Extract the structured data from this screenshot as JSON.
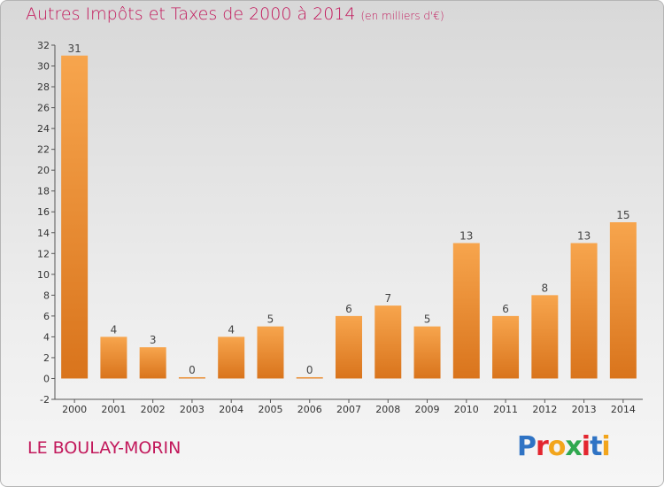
{
  "title": "Autres Impôts et Taxes de 2000 à 2014",
  "unit": "(en milliers d'€)",
  "location": "LE BOULAY-MORIN",
  "brand": {
    "letters": [
      "P",
      "r",
      "o",
      "x",
      "i",
      "t",
      "i"
    ],
    "colors": [
      "#2f73c4",
      "#e3262f",
      "#f2a51c",
      "#2fa84f",
      "#e3262f",
      "#2f73c4",
      "#f2a51c"
    ]
  },
  "colors": {
    "title": "#c2185b",
    "bar_light": "#f7a54d",
    "bar_dark": "#d9741c"
  },
  "chart_data": {
    "type": "bar",
    "title": "Autres Impôts et Taxes de 2000 à 2014",
    "xlabel": "",
    "ylabel": "",
    "categories": [
      "2000",
      "2001",
      "2002",
      "2003",
      "2004",
      "2005",
      "2006",
      "2007",
      "2008",
      "2009",
      "2010",
      "2011",
      "2012",
      "2013",
      "2014"
    ],
    "values": [
      31,
      4,
      3,
      0,
      4,
      5,
      0,
      6,
      7,
      5,
      13,
      6,
      8,
      13,
      15
    ],
    "data_labels": [
      "31",
      "4",
      "3",
      "0",
      "4",
      "5",
      "0",
      "6",
      "7",
      "5",
      "13",
      "6",
      "8",
      "13",
      "15"
    ],
    "ylim": [
      -2,
      32
    ],
    "yticks": [
      -2,
      0,
      2,
      4,
      6,
      8,
      10,
      12,
      14,
      16,
      18,
      20,
      22,
      24,
      26,
      28,
      30,
      32
    ],
    "ytick_labels": [
      "-2",
      "0",
      "2",
      "4",
      "6",
      "8",
      "10",
      "12",
      "14",
      "16",
      "18",
      "20",
      "22",
      "24",
      "26",
      "28",
      "30",
      "32"
    ],
    "grid": false,
    "legend": "none"
  }
}
